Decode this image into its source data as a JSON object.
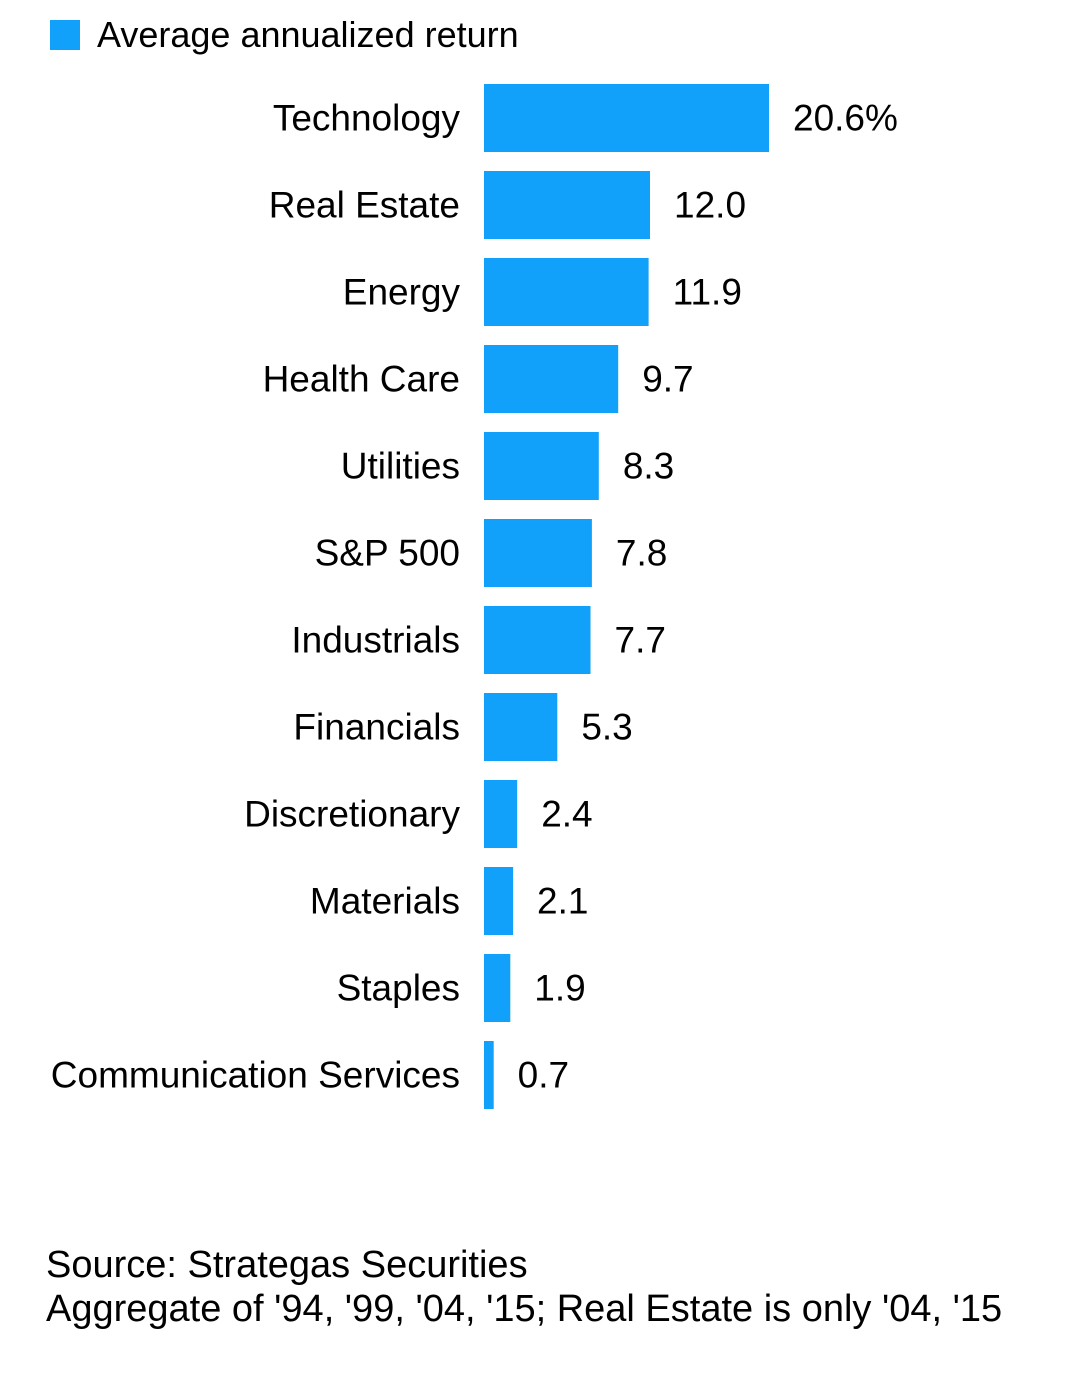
{
  "chart_data": {
    "type": "bar",
    "orientation": "horizontal",
    "legend": {
      "label": "Average annualized return",
      "color": "#12a1fa",
      "placement": "top-left"
    },
    "categories": [
      "Technology",
      "Real Estate",
      "Energy",
      "Health Care",
      "Utilities",
      "S&P 500",
      "Industrials",
      "Financials",
      "Discretionary",
      "Materials",
      "Staples",
      "Communication Services"
    ],
    "values": [
      20.6,
      12.0,
      11.9,
      9.7,
      8.3,
      7.8,
      7.7,
      5.3,
      2.4,
      2.1,
      1.9,
      0.7
    ],
    "value_labels": [
      "20.6%",
      "12.0",
      "11.9",
      "9.7",
      "8.3",
      "7.8",
      "7.7",
      "5.3",
      "2.4",
      "2.1",
      "1.9",
      "0.7"
    ],
    "xlim": [
      0,
      20.6
    ],
    "unit": "%",
    "grid": false
  },
  "footer": {
    "source": "Source: Strategas Securities",
    "note": "Aggregate of '94, '99, '04, '15; Real Estate is only '04, '15"
  }
}
